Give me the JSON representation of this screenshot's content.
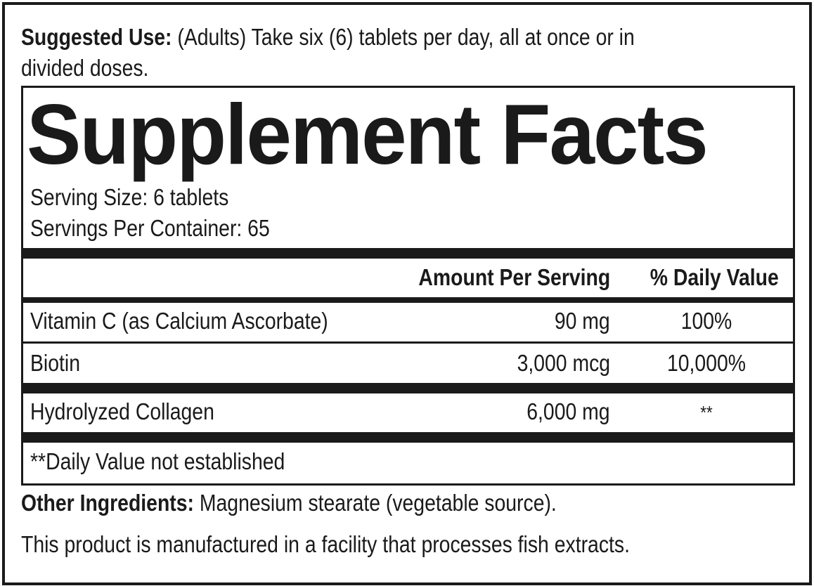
{
  "suggested_use": {
    "label": "Suggested Use:",
    "text": " (Adults) Take six (6) tablets per day, all at once or in",
    "text2": "divided doses."
  },
  "title": "Supplement Facts",
  "serving_size": "Serving Size: 6 tablets",
  "servings_per_container": "Servings Per Container: 65",
  "headers": {
    "amount": "Amount Per Serving",
    "dv": "% Daily Value"
  },
  "rows": [
    {
      "name": "Vitamin C (as Calcium Ascorbate)",
      "amount": "90 mg",
      "dv": "100%"
    },
    {
      "name": "Biotin",
      "amount": "3,000 mcg",
      "dv": "10,000%"
    },
    {
      "name": "Hydrolyzed Collagen",
      "amount": "6,000 mg",
      "dv": "**"
    }
  ],
  "footnote": "**Daily Value not established",
  "other_ingredients": {
    "label": "Other Ingredients:",
    "text": " Magnesium stearate (vegetable source)."
  },
  "allergen": "This product is manufactured in a facility that processes fish extracts."
}
